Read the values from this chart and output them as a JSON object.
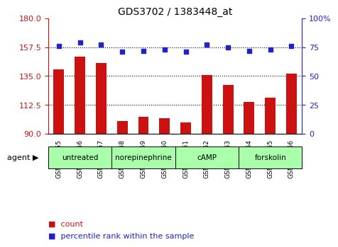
{
  "title": "GDS3702 / 1383448_at",
  "samples": [
    "GSM310055",
    "GSM310056",
    "GSM310057",
    "GSM310058",
    "GSM310059",
    "GSM310060",
    "GSM310061",
    "GSM310062",
    "GSM310063",
    "GSM310064",
    "GSM310065",
    "GSM310066"
  ],
  "counts": [
    140,
    150,
    145,
    100,
    103,
    102,
    99,
    136,
    128,
    115,
    118,
    137
  ],
  "percentiles": [
    76,
    79,
    77,
    71,
    72,
    73,
    71,
    77,
    75,
    72,
    73,
    76
  ],
  "ylim_left": [
    90,
    180
  ],
  "yticks_left": [
    90,
    112.5,
    135,
    157.5,
    180
  ],
  "ylim_right": [
    0,
    100
  ],
  "yticks_right": [
    0,
    25,
    50,
    75,
    100
  ],
  "ytick_labels_right": [
    "0",
    "25",
    "50",
    "75",
    "100%"
  ],
  "hlines": [
    112.5,
    135,
    157.5
  ],
  "bar_color": "#cc1111",
  "dot_color": "#2222cc",
  "agent_groups": [
    {
      "label": "untreated",
      "start": 0,
      "end": 3
    },
    {
      "label": "norepinephrine",
      "start": 3,
      "end": 6
    },
    {
      "label": "cAMP",
      "start": 6,
      "end": 9
    },
    {
      "label": "forskolin",
      "start": 9,
      "end": 12
    }
  ],
  "agent_group_color": "#aaffaa",
  "agent_arrow_label": "agent",
  "title_color": "#000000",
  "left_axis_color": "#cc1111",
  "right_axis_color": "#2222cc",
  "background_color": "#ffffff",
  "bar_width": 0.5,
  "legend_count_label": "count",
  "legend_percentile_label": "percentile rank within the sample"
}
